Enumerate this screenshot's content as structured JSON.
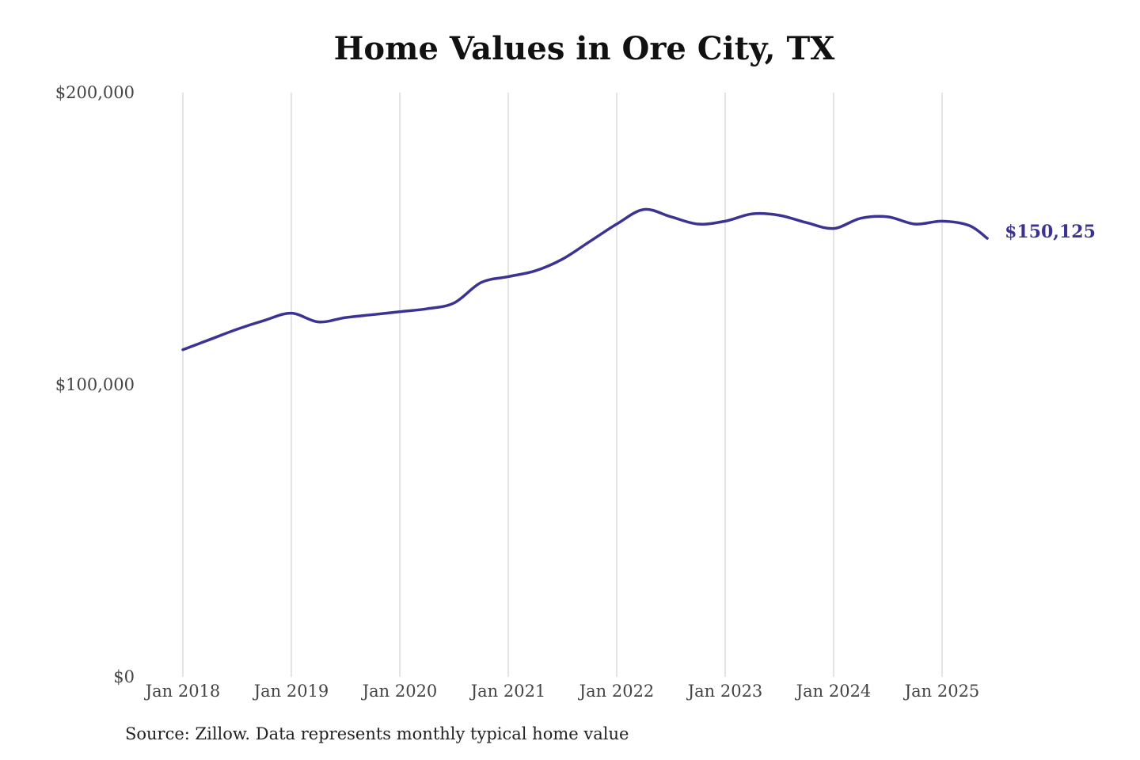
{
  "chart_data": {
    "type": "line",
    "title": "Home Values in Ore City, TX",
    "source": "Source: Zillow. Data represents monthly typical home value",
    "xlabel": "",
    "ylabel": "",
    "ylim": [
      0,
      200000
    ],
    "y_ticks": [
      0,
      100000,
      200000
    ],
    "y_tick_labels": [
      "$0",
      "$100,000",
      "$200,000"
    ],
    "x_ticks": [
      "2018-01",
      "2019-01",
      "2020-01",
      "2021-01",
      "2022-01",
      "2023-01",
      "2024-01",
      "2025-01"
    ],
    "x_tick_labels": [
      "Jan 2018",
      "Jan 2019",
      "Jan 2020",
      "Jan 2021",
      "Jan 2022",
      "Jan 2023",
      "Jan 2024",
      "Jan 2025"
    ],
    "vertical_grid": true,
    "horizontal_grid": false,
    "line_color": "#3b3391",
    "grid_color": "#c8c8c8",
    "end_label": "$150,125",
    "series": [
      {
        "x": [
          "2018-01",
          "2018-04",
          "2018-07",
          "2018-10",
          "2019-01",
          "2019-04",
          "2019-07",
          "2019-10",
          "2020-01",
          "2020-04",
          "2020-07",
          "2020-10",
          "2021-01",
          "2021-04",
          "2021-07",
          "2021-10",
          "2022-01",
          "2022-04",
          "2022-07",
          "2022-10",
          "2023-01",
          "2023-04",
          "2023-07",
          "2023-10",
          "2024-01",
          "2024-04",
          "2024-07",
          "2024-10",
          "2025-01",
          "2025-04",
          "2025-06"
        ],
        "values": [
          112000,
          115500,
          119000,
          122000,
          124500,
          121500,
          123000,
          124000,
          125000,
          126000,
          128000,
          135000,
          137000,
          139000,
          143000,
          149000,
          155000,
          160000,
          157500,
          155000,
          156000,
          158500,
          158000,
          155500,
          153500,
          157000,
          157500,
          155000,
          156000,
          154500,
          150125
        ]
      }
    ]
  }
}
